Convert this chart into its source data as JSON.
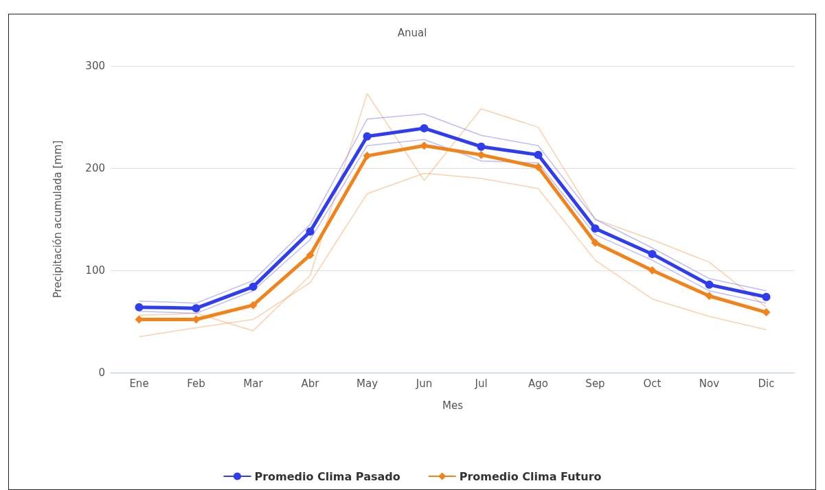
{
  "chart_data": {
    "type": "line",
    "title": "Anual",
    "xlabel": "Mes",
    "ylabel": "Precipitación acumulada [mm]",
    "categories": [
      "Ene",
      "Feb",
      "Mar",
      "Abr",
      "May",
      "Jun",
      "Jul",
      "Ago",
      "Sep",
      "Oct",
      "Nov",
      "Dic"
    ],
    "ylim": [
      0,
      300
    ],
    "yticks": [
      0,
      100,
      200,
      300
    ],
    "grid": "y",
    "legend": "bottom",
    "series": [
      {
        "color": "#f5a35c",
        "marker": "none",
        "values": [
          35,
          44,
          52,
          88,
          175,
          195,
          190,
          180,
          110,
          72,
          55,
          42
        ]
      },
      {
        "color": "#f5a35c",
        "marker": "none",
        "values": [
          56,
          58,
          41,
          95,
          273,
          188,
          258,
          240,
          150,
          130,
          108,
          64
        ]
      },
      {
        "color": "#7b7bf0",
        "marker": "none",
        "values": [
          70,
          68,
          90,
          145,
          248,
          253,
          232,
          222,
          150,
          122,
          92,
          80
        ]
      },
      {
        "color": "#7b7bf0",
        "marker": "none",
        "values": [
          60,
          58,
          80,
          130,
          222,
          228,
          207,
          205,
          135,
          110,
          80,
          68
        ]
      },
      {
        "name": "Promedio Clima Pasado",
        "color": "#2f3ded",
        "marker": "circle",
        "values": [
          64,
          63,
          84,
          138,
          231,
          239,
          221,
          213,
          141,
          116,
          86,
          74
        ]
      },
      {
        "name": "Promedio Clima Futuro",
        "color": "#f0841c",
        "marker": "diamond",
        "values": [
          52,
          52,
          66,
          115,
          212,
          222,
          213,
          201,
          127,
          100,
          75,
          59
        ]
      }
    ]
  }
}
